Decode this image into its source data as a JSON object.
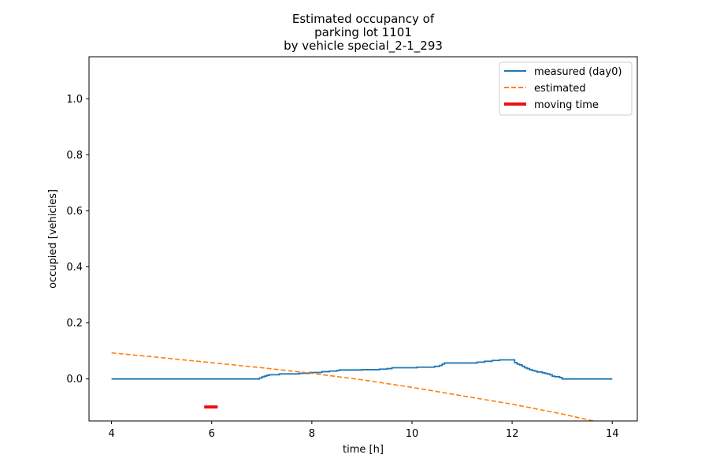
{
  "chart_data": {
    "type": "line",
    "title": [
      "Estimated occupancy of",
      "parking lot 1101",
      "by vehicle special_2-1_293"
    ],
    "xlabel": "time [h]",
    "ylabel": "occupied [vehicles]",
    "xlim": [
      3.55,
      14.5
    ],
    "ylim": [
      -0.15,
      1.15
    ],
    "xticks": [
      4,
      6,
      8,
      10,
      12,
      14
    ],
    "xtick_labels": [
      "4",
      "6",
      "8",
      "10",
      "12",
      "14"
    ],
    "yticks": [
      0.0,
      0.2,
      0.4,
      0.6,
      0.8,
      1.0
    ],
    "ytick_labels": [
      "0.0",
      "0.2",
      "0.4",
      "0.6",
      "0.8",
      "1.0"
    ],
    "grid": false,
    "legend_position": "top-right",
    "series": [
      {
        "name": "measured (day0)",
        "style": "solid",
        "color": "#1f77b4",
        "step": true,
        "x": [
          4.0,
          6.95,
          7.0,
          7.05,
          7.1,
          7.15,
          7.35,
          7.75,
          7.95,
          8.2,
          8.35,
          8.5,
          8.55,
          9.0,
          9.35,
          9.5,
          9.6,
          10.1,
          10.45,
          10.55,
          10.6,
          10.65,
          11.3,
          11.45,
          11.6,
          11.75,
          11.9,
          12.05,
          12.1,
          12.15,
          12.2,
          12.25,
          12.3,
          12.35,
          12.4,
          12.45,
          12.5,
          12.6,
          12.65,
          12.7,
          12.75,
          12.8,
          12.85,
          12.95,
          13.0,
          14.0
        ],
        "y": [
          0.0,
          0.003,
          0.007,
          0.01,
          0.013,
          0.015,
          0.018,
          0.02,
          0.023,
          0.026,
          0.028,
          0.03,
          0.032,
          0.033,
          0.035,
          0.037,
          0.04,
          0.042,
          0.045,
          0.048,
          0.053,
          0.057,
          0.06,
          0.063,
          0.066,
          0.068,
          0.068,
          0.058,
          0.053,
          0.05,
          0.045,
          0.04,
          0.037,
          0.033,
          0.03,
          0.028,
          0.025,
          0.022,
          0.02,
          0.018,
          0.015,
          0.01,
          0.008,
          0.005,
          0.0,
          0.0
        ]
      },
      {
        "name": "estimated",
        "style": "dashed",
        "color": "#ff7f0e",
        "x": [
          4.0,
          5.0,
          6.0,
          7.0,
          8.0,
          9.0,
          10.0,
          11.0,
          12.0,
          13.0,
          14.0
        ],
        "y": [
          0.093,
          0.076,
          0.058,
          0.04,
          0.02,
          -0.003,
          -0.03,
          -0.06,
          -0.09,
          -0.125,
          -0.165
        ]
      },
      {
        "name": "moving time",
        "style": "solid-thick",
        "color": "#ee1111",
        "x": [
          5.85,
          6.12
        ],
        "y": [
          -0.1,
          -0.1
        ]
      }
    ]
  }
}
